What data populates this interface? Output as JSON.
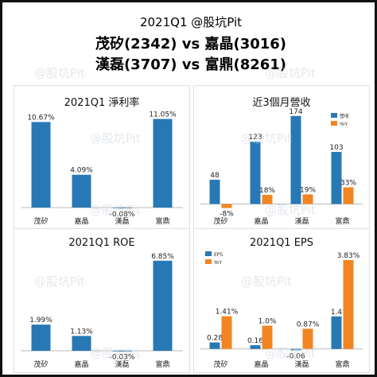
{
  "header": {
    "line1": "2021Q1  @股坑Pit",
    "line2": "茂矽(2342) vs 嘉晶(3016)",
    "line3": "漢磊(3707) vs 富鼎(8261)"
  },
  "watermark": "@股坑Pit",
  "colors": {
    "blue": "#2878b5",
    "orange": "#f28522"
  },
  "chart_data": [
    {
      "type": "bar",
      "title": "2021Q1 淨利率",
      "categories": [
        "茂矽",
        "嘉晶",
        "漢磊",
        "富鼎"
      ],
      "values": [
        10.67,
        4.09,
        -0.08,
        11.05
      ],
      "labels": [
        "10.67%",
        "4.09%",
        "-0.08%",
        "11.05%"
      ],
      "ylim": [
        -0.5,
        11.8
      ]
    },
    {
      "type": "bar",
      "title": "近3個月營收",
      "categories": [
        "茂矽",
        "嘉晶",
        "漢磊",
        "富鼎"
      ],
      "series": [
        {
          "name": "營收",
          "values": [
            48,
            123,
            174,
            103
          ],
          "labels": [
            "48",
            "123",
            "174",
            "103"
          ]
        },
        {
          "name": "YoY",
          "values": [
            -8,
            18,
            19,
            33
          ],
          "labels": [
            "-8%",
            "18%",
            "19%",
            "33%"
          ]
        }
      ],
      "legend": "top-right",
      "ylim": [
        -15,
        180
      ]
    },
    {
      "type": "bar",
      "title": "2021Q1 ROE",
      "categories": [
        "茂矽",
        "嘉晶",
        "漢磊",
        "富鼎"
      ],
      "values": [
        1.99,
        1.13,
        -0.03,
        6.85
      ],
      "labels": [
        "1.99%",
        "1.13%",
        "-0.03%",
        "6.85%"
      ],
      "ylim": [
        -0.3,
        7.2
      ]
    },
    {
      "type": "bar",
      "title": "2021Q1 EPS",
      "categories": [
        "茂矽",
        "嘉晶",
        "漢磊",
        "富鼎"
      ],
      "series": [
        {
          "name": "EPS",
          "values": [
            0.28,
            0.16,
            -0.06,
            1.4
          ],
          "labels": [
            "0.28",
            "0.16",
            "-0.06",
            "1.4"
          ]
        },
        {
          "name": "YoY",
          "values": [
            1.41,
            1.0,
            0.87,
            3.83
          ],
          "labels": [
            "1.41%",
            "1.0%",
            "0.87%",
            "3.83%"
          ]
        }
      ],
      "legend": "top-left",
      "ylim": [
        -0.25,
        4.0
      ]
    }
  ]
}
